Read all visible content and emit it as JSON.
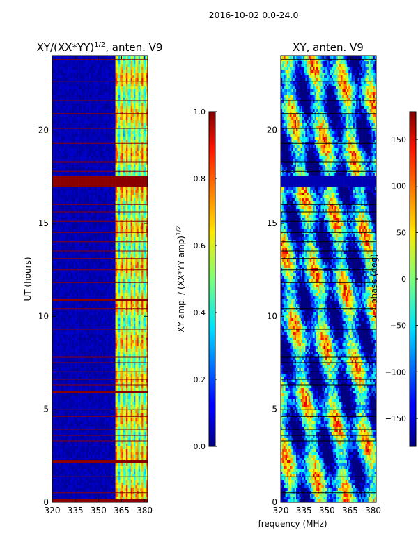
{
  "chart_data": {
    "type": "heatmap",
    "suptitle": "2016-10-02 0.0-24.0",
    "xlabel": "frequency (MHz)",
    "panels": [
      {
        "title_main": "XY/(XX*YY)",
        "title_exp": "1/2",
        "title_tail": ", anten. V9",
        "ylabel": "UT (hours)",
        "xlim": [
          320,
          382
        ],
        "ylim": [
          0,
          24
        ],
        "xticks": [
          320,
          335,
          350,
          365,
          380
        ],
        "yticks": [
          0,
          5,
          10,
          15,
          20
        ],
        "colorbar": {
          "label_main": "XY amp. / (XX*YY amp)",
          "label_exp": "1/2",
          "range": [
            0.0,
            1.0
          ],
          "ticks": [
            0.0,
            0.2,
            0.4,
            0.6,
            0.8,
            1.0
          ],
          "tick_labels": [
            "0.0",
            "0.2",
            "0.4",
            "0.6",
            "0.8",
            "1.0"
          ]
        }
      },
      {
        "title_main": "XY, anten. V9",
        "ylim": [
          0,
          24
        ],
        "xlim": [
          320,
          382
        ],
        "xticks": [
          320,
          335,
          350,
          365,
          380
        ],
        "yticks": [
          0,
          5,
          10,
          15,
          20
        ],
        "colorbar": {
          "label_main": "phase (deg)",
          "range": [
            -180,
            180
          ],
          "ticks": [
            -150,
            -100,
            -50,
            0,
            50,
            100,
            150
          ],
          "tick_labels": [
            "−150",
            "−100",
            "−50",
            "0",
            "50",
            "100",
            "150"
          ]
        }
      }
    ],
    "flagged_hours_saturated": [
      0.1,
      2.2,
      5.9,
      10.9,
      17.2
    ],
    "saturated_band_width_hours": [
      0.2,
      0.2,
      0.2,
      0.25,
      0.6
    ],
    "bright_band_mhz": [
      361,
      382
    ]
  }
}
